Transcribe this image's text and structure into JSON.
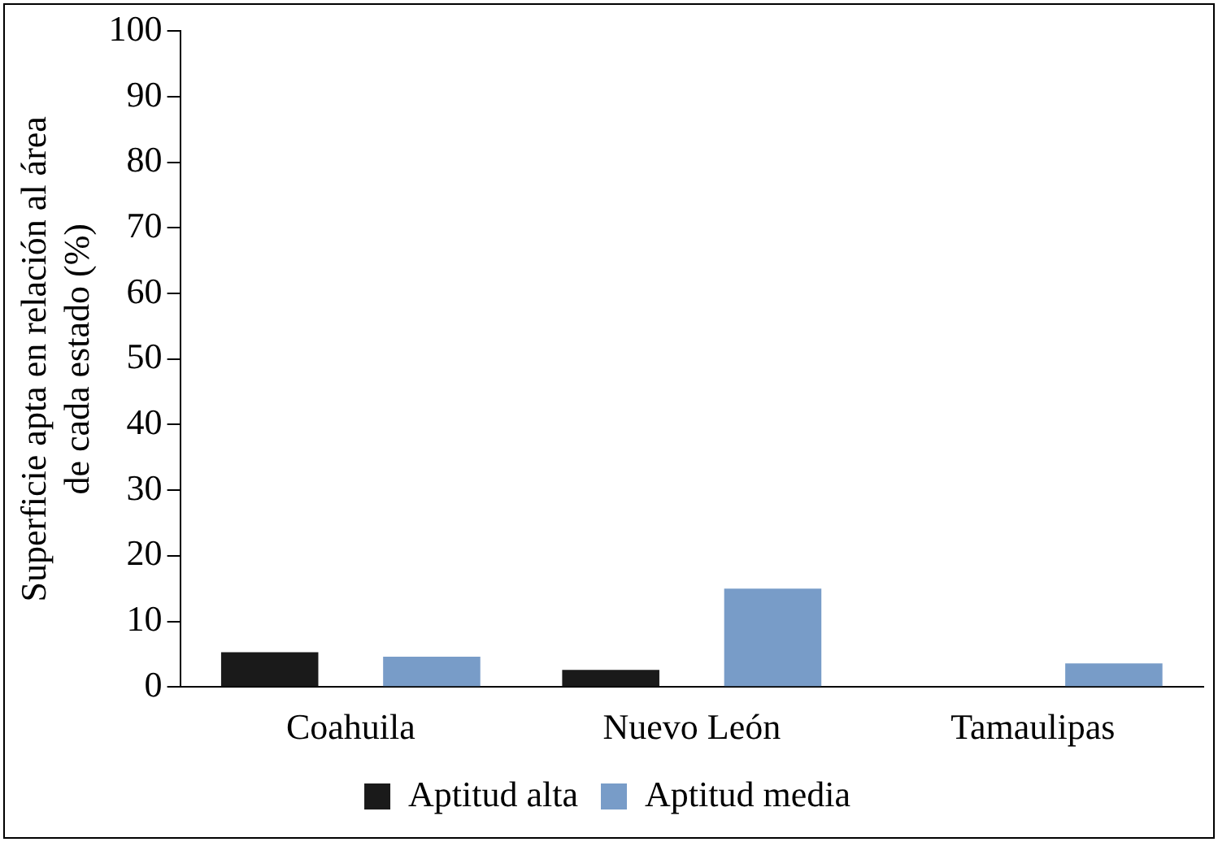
{
  "chart_data": {
    "type": "bar",
    "ylabel": "Superficie apta en relación al área de cada estado (%)",
    "categories": [
      "Coahuila",
      "Nuevo León",
      "Tamaulipas"
    ],
    "series": [
      {
        "name": "Aptitud alta",
        "color": "#1a1a1a",
        "values": [
          5.3,
          2.6,
          0
        ]
      },
      {
        "name": "Aptitud media",
        "color": "#789cc8",
        "values": [
          4.6,
          15.0,
          3.6
        ]
      }
    ],
    "ylim": [
      0,
      100
    ],
    "yticks": [
      0,
      10,
      20,
      30,
      40,
      50,
      60,
      70,
      80,
      90,
      100
    ],
    "grid": false,
    "legend": "bottom"
  }
}
